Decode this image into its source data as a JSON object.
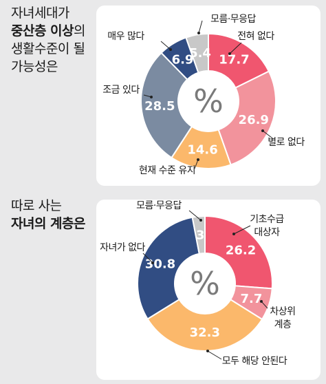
{
  "panels": [
    {
      "heading_lines": [
        {
          "parts": [
            {
              "text": "자녀세대가",
              "strong": false
            }
          ]
        },
        {
          "parts": [
            {
              "text": "중산층 이상",
              "strong": true
            },
            {
              "text": "의",
              "strong": false
            }
          ]
        },
        {
          "parts": [
            {
              "text": "생활수준이 될",
              "strong": false
            }
          ]
        },
        {
          "parts": [
            {
              "text": "가능성은",
              "strong": false
            }
          ]
        }
      ]
    },
    {
      "heading_lines": [
        {
          "parts": [
            {
              "text": "따로 사는",
              "strong": false
            }
          ]
        },
        {
          "parts": [
            {
              "text": "자녀의 계층은",
              "strong": true
            }
          ]
        }
      ]
    }
  ],
  "center_symbol": "%",
  "chart_data": [
    {
      "type": "pie",
      "donut": true,
      "unit": "%",
      "slices": [
        {
          "label": "전혀 없다",
          "value": 17.7,
          "color": "#f0566f"
        },
        {
          "label": "별로 없다",
          "value": 26.9,
          "color": "#f2939c"
        },
        {
          "label": "현재 수준 유지",
          "value": 14.6,
          "color": "#fbb86b"
        },
        {
          "label": "조금 있다",
          "value": 28.5,
          "color": "#7b8ba1"
        },
        {
          "label": "매우 많다",
          "value": 6.9,
          "color": "#314d83"
        },
        {
          "label": "모름·무응답",
          "value": 5.4,
          "color": "#c8c8c8"
        }
      ]
    },
    {
      "type": "pie",
      "donut": true,
      "unit": "%",
      "slices": [
        {
          "label": "기초수급 대상자",
          "value": 26.2,
          "color": "#f0566f"
        },
        {
          "label": "차상위 계층",
          "value": 7.7,
          "color": "#f2939c"
        },
        {
          "label": "모두 해당 안된다",
          "value": 32.3,
          "color": "#fbb86b"
        },
        {
          "label": "자녀가 없다",
          "value": 30.8,
          "color": "#314d83"
        },
        {
          "label": "모름·무응답",
          "value": 3,
          "color": "#c8c8c8"
        }
      ]
    }
  ]
}
